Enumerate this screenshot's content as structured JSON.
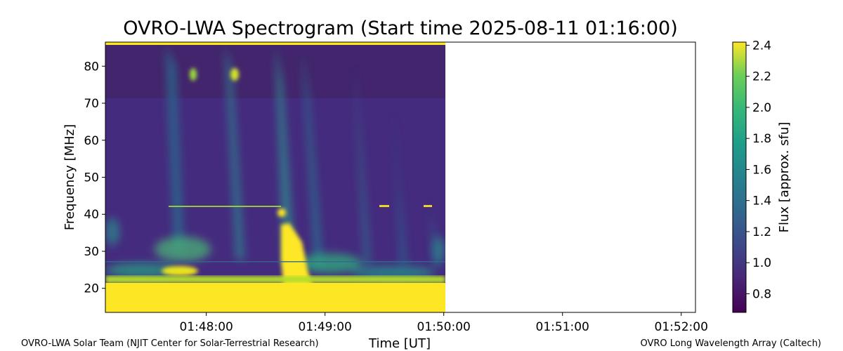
{
  "chart_data": {
    "type": "heatmap",
    "title": "OVRO-LWA Spectrogram (Start time 2025-08-11 01:16:00)",
    "xlabel": "Time [UT]",
    "ylabel": "Frequency [MHz]",
    "colorbar_label": "Flux [approx. sfu]",
    "colormap": "viridis",
    "x_ticks": [
      "01:48:00",
      "01:49:00",
      "01:50:00",
      "01:51:00",
      "01:52:00"
    ],
    "x_tick_values": [
      48,
      49,
      50,
      51,
      52
    ],
    "xlim": [
      47.15,
      52.12
    ],
    "data_end": 50.0,
    "y_ticks": [
      20,
      30,
      40,
      50,
      60,
      70,
      80
    ],
    "ylim": [
      13.5,
      86.5
    ],
    "colorbar_ticks": [
      0.8,
      1.0,
      1.2,
      1.4,
      1.6,
      1.8,
      2.0,
      2.2,
      2.4
    ],
    "colorbar_range": [
      0.68,
      2.42
    ],
    "saturated_band_below_mhz": 21,
    "features": [
      {
        "kind": "type III burst",
        "time": 48.35,
        "freq_range": [
          20,
          86
        ]
      },
      {
        "kind": "type III burst",
        "time": 48.75,
        "freq_range": [
          20,
          86
        ]
      },
      {
        "kind": "type III burst",
        "time": 48.17,
        "freq_range": [
          20,
          86
        ]
      },
      {
        "kind": "bright burst",
        "time": 48.62,
        "freq_range": [
          21,
          41
        ]
      },
      {
        "kind": "bright burst",
        "time": 47.8,
        "freq_range": [
          22,
          26
        ]
      },
      {
        "kind": "narrowband RFI",
        "time_range": [
          47.55,
          50.0
        ],
        "freq": 42
      }
    ]
  },
  "credits": {
    "left": "OVRO-LWA Solar Team (NJIT Center for Solar-Terrestrial Research)",
    "right": "OVRO Long Wavelength Array (Caltech)"
  },
  "colors": {
    "viridis_low": "#440154",
    "viridis_mid": "#21918c",
    "viridis_high": "#fde725",
    "background": "#ffffff"
  }
}
